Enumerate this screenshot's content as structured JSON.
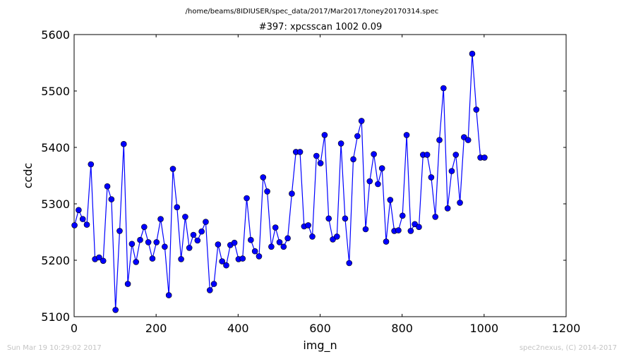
{
  "chart_data": {
    "type": "line",
    "suptitle": "/home/beams/8IDIUSER/spec_data/2017/Mar2017/toney20170314.spec",
    "title": "#397: xpcsscan 1002 0.09",
    "xlabel": "img_n",
    "ylabel": "ccdc",
    "xlim": [
      0,
      1200
    ],
    "ylim": [
      5100,
      5600
    ],
    "xticks": [
      "0",
      "200",
      "400",
      "600",
      "800",
      "1000",
      "1200"
    ],
    "yticks": [
      "5100",
      "5200",
      "5300",
      "5400",
      "5500",
      "5600"
    ],
    "grid": false,
    "line_color": "#0000ff",
    "marker": "circle",
    "series": [
      {
        "x": [
          1,
          11,
          21,
          31,
          41,
          51,
          61,
          71,
          81,
          91,
          101,
          111,
          121,
          131,
          141,
          151,
          161,
          171,
          181,
          191,
          201,
          211,
          221,
          231,
          241,
          251,
          261,
          271,
          281,
          291,
          301,
          311,
          321,
          331,
          341,
          351,
          361,
          371,
          381,
          391,
          401,
          411,
          421,
          431,
          441,
          451,
          461,
          471,
          481,
          491,
          501,
          511,
          521,
          531,
          541,
          551,
          561,
          571,
          581,
          591,
          601,
          611,
          621,
          631,
          641,
          651,
          661,
          671,
          681,
          691,
          701,
          711,
          721,
          731,
          741,
          751,
          761,
          771,
          781,
          791,
          801,
          811,
          821,
          831,
          841,
          851,
          861,
          871,
          881,
          891,
          901,
          911,
          921,
          931,
          941,
          951,
          961,
          971,
          981,
          991,
          1001
        ],
        "y": [
          5262,
          5289,
          5273,
          5263,
          5370,
          5202,
          5205,
          5199,
          5331,
          5308,
          5112,
          5252,
          5406,
          5158,
          5229,
          5197,
          5236,
          5259,
          5232,
          5203,
          5232,
          5273,
          5224,
          5138,
          5362,
          5294,
          5202,
          5277,
          5222,
          5245,
          5235,
          5251,
          5268,
          5147,
          5158,
          5228,
          5198,
          5191,
          5227,
          5231,
          5202,
          5203,
          5310,
          5236,
          5216,
          5207,
          5347,
          5322,
          5224,
          5258,
          5232,
          5224,
          5239,
          5318,
          5392,
          5392,
          5260,
          5262,
          5242,
          5385,
          5372,
          5422,
          5274,
          5237,
          5242,
          5407,
          5274,
          5195,
          5379,
          5420,
          5447,
          5255,
          5340,
          5388,
          5335,
          5363,
          5233,
          5307,
          5252,
          5253,
          5279,
          5422,
          5252,
          5264,
          5259,
          5387,
          5387,
          5347,
          5277,
          5413,
          5505,
          5292,
          5358,
          5387,
          5302,
          5418,
          5413,
          5566,
          5467,
          5382,
          5382
        ]
      }
    ]
  },
  "footer": {
    "timestamp": "Sun Mar 19 10:29:02 2017",
    "credit": "spec2nexus, (C) 2014-2017"
  }
}
